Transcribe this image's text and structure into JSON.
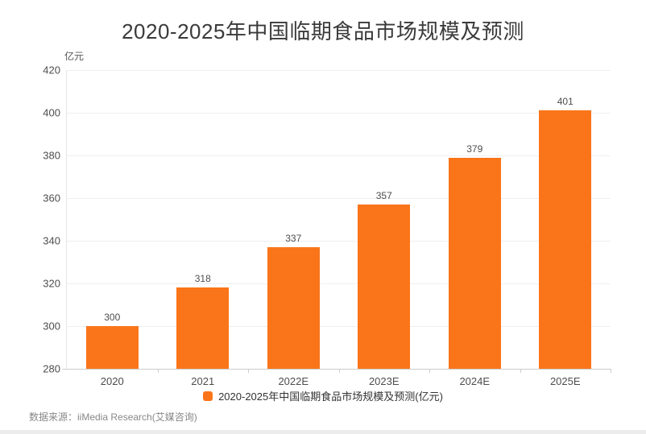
{
  "chart": {
    "title": "2020-2025年中国临期食品市场规模及预测",
    "y_unit": "亿元",
    "legend_label": "2020-2025年中国临期食品市场规模及预测(亿元)",
    "source": "数据来源：iiMedia Research(艾媒咨询)",
    "bar_color": "#FA7519"
  },
  "chart_data": {
    "type": "bar",
    "title": "2020-2025年中国临期食品市场规模及预测",
    "categories": [
      "2020",
      "2021",
      "2022E",
      "2023E",
      "2024E",
      "2025E"
    ],
    "values": [
      300,
      318,
      337,
      357,
      379,
      401
    ],
    "xlabel": "",
    "ylabel": "亿元",
    "ylim": [
      280,
      420
    ],
    "yticks": [
      280,
      300,
      320,
      340,
      360,
      380,
      400,
      420
    ],
    "grid": true,
    "legend": [
      "2020-2025年中国临期食品市场规模及预测(亿元)"
    ],
    "legend_position": "bottom",
    "bar_color": "#FA7519",
    "label_color": "#4d4d4d",
    "source": "数据来源：iiMedia Research(艾媒咨询)"
  }
}
